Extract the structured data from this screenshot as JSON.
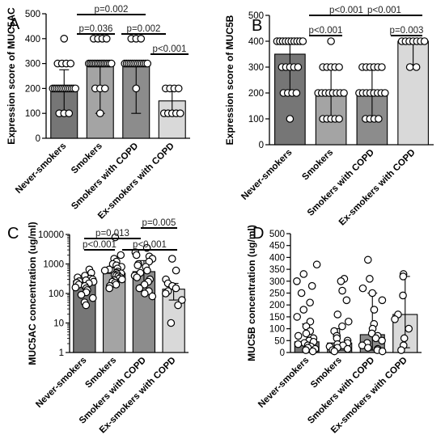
{
  "panels": [
    {
      "letter": "A",
      "type": "bar",
      "scale": "linear",
      "ylabel": "Expression score of MUC5AC",
      "ylim": [
        0,
        500
      ],
      "yticks": [
        0,
        100,
        200,
        300,
        400,
        500
      ],
      "categories": [
        "Never-smokers",
        "Smokers",
        "Smokers with COPD",
        "Ex-smokers with COPD"
      ],
      "values": [
        200,
        300,
        300,
        150
      ],
      "error_upper": [
        275,
        300,
        300,
        200
      ],
      "error_lower": [
        100,
        100,
        100,
        100
      ],
      "fills": [
        "#767676",
        "#a4a4a4",
        "#8c8c8c",
        "#d9d9d9"
      ],
      "points": [
        [
          400,
          300,
          300,
          300,
          300,
          200,
          200,
          200,
          200,
          200,
          200,
          200,
          200,
          200,
          200,
          200,
          200,
          200,
          100,
          100,
          100
        ],
        [
          400,
          400,
          400,
          400,
          300,
          300,
          300,
          300,
          300,
          300,
          300,
          300,
          300,
          300,
          300,
          300,
          300,
          300,
          200,
          200,
          200,
          100
        ],
        [
          400,
          400,
          400,
          300,
          300,
          300,
          300,
          300,
          300,
          300,
          300,
          300,
          300,
          300,
          300,
          300,
          200
        ],
        [
          200,
          200,
          200,
          200,
          100,
          100,
          100,
          100,
          100
        ]
      ],
      "brackets": [
        {
          "from": 0,
          "to": 2,
          "label": "p=0.002"
        },
        {
          "from": 0,
          "to": 1,
          "label": "p=0.036"
        },
        {
          "from": 1,
          "to": 2,
          "label": "p=0.002"
        },
        {
          "from": 2,
          "to": 3,
          "label": "p<0.001"
        }
      ]
    },
    {
      "letter": "B",
      "type": "bar",
      "scale": "linear",
      "ylabel": "Expression score of MUC5B",
      "ylim": [
        0,
        500
      ],
      "yticks": [
        0,
        100,
        200,
        300,
        400,
        500
      ],
      "categories": [
        "Never-smokers",
        "Smokers",
        "Smokers with COPD",
        "Ex-smokers with COPD"
      ],
      "values": [
        350,
        200,
        200,
        400
      ],
      "error_upper": [
        400,
        300,
        300,
        400
      ],
      "error_lower": [
        200,
        100,
        100,
        300
      ],
      "fills": [
        "#767676",
        "#a4a4a4",
        "#8c8c8c",
        "#d9d9d9"
      ],
      "points": [
        [
          400,
          400,
          400,
          400,
          400,
          400,
          400,
          400,
          400,
          400,
          300,
          300,
          300,
          300,
          300,
          200,
          200,
          200,
          200,
          100
        ],
        [
          400,
          300,
          300,
          300,
          300,
          300,
          200,
          200,
          200,
          200,
          200,
          200,
          200,
          200,
          100,
          100,
          100,
          100,
          100
        ],
        [
          300,
          300,
          300,
          300,
          300,
          300,
          200,
          200,
          200,
          200,
          200,
          200,
          200,
          200,
          100,
          100,
          100,
          100
        ],
        [
          400,
          400,
          400,
          400,
          400,
          400,
          400,
          300,
          300
        ]
      ],
      "brackets": [
        {
          "from": 0,
          "to": 2,
          "label": "p<0.001"
        },
        {
          "from": 1,
          "to": 3,
          "label": "p<0.001"
        },
        {
          "from": 0,
          "to": 1,
          "label": "p<0.001"
        },
        {
          "from": 2,
          "to": 3,
          "label": "p=0.003"
        }
      ]
    },
    {
      "letter": "C",
      "type": "bar",
      "scale": "log",
      "ylabel": "MUC5AC concentration (ug/ml)",
      "ylim": [
        1,
        10000
      ],
      "yticks": [
        1,
        10,
        100,
        1000,
        10000
      ],
      "categories": [
        "Never-smokers",
        "Smokers",
        "Smokers with COPD",
        "Ex-smokers with COPD"
      ],
      "values": [
        270,
        480,
        550,
        140
      ],
      "error_upper": [
        400,
        750,
        1300,
        220
      ],
      "error_lower": [
        170,
        300,
        200,
        60
      ],
      "fills": [
        "#767676",
        "#a4a4a4",
        "#8c8c8c",
        "#d9d9d9"
      ],
      "points": [
        [
          650,
          500,
          400,
          350,
          320,
          300,
          280,
          260,
          250,
          230,
          220,
          200,
          180,
          160,
          150,
          130,
          110,
          90,
          70,
          50,
          40
        ],
        [
          8000,
          2000,
          1500,
          1200,
          1000,
          900,
          800,
          700,
          650,
          600,
          550,
          500,
          480,
          450,
          420,
          400,
          380,
          350,
          320,
          300,
          280,
          250,
          230,
          200,
          180,
          150
        ],
        [
          3500,
          2500,
          2000,
          1800,
          1500,
          1200,
          1000,
          900,
          800,
          600,
          500,
          400,
          350,
          300,
          250,
          200,
          150,
          120,
          100,
          80
        ],
        [
          1500,
          600,
          300,
          220,
          180,
          150,
          120,
          100,
          60,
          40,
          10
        ]
      ],
      "brackets": [
        {
          "from": 2,
          "to": 3,
          "label": "p=0.005"
        },
        {
          "from": 0,
          "to": 2,
          "label": "p=0.013"
        },
        {
          "from": 0,
          "to": 1,
          "label": "p<0.001"
        },
        {
          "from": 1,
          "to": 3,
          "label": "p<0.001"
        }
      ]
    },
    {
      "letter": "D",
      "type": "bar",
      "scale": "linear",
      "ylabel": "MUC5B concentration (ug/ml)",
      "ylim": [
        0,
        500
      ],
      "yticks": [
        0,
        50,
        100,
        150,
        200,
        250,
        300,
        350,
        400,
        450,
        500
      ],
      "categories": [
        "Never-smokers",
        "Smokers",
        "Smokers with COPD",
        "Ex-smokers with COPD"
      ],
      "values": [
        45,
        40,
        75,
        160
      ],
      "error_upper": [
        120,
        100,
        250,
        320
      ],
      "error_lower": [
        10,
        10,
        10,
        20
      ],
      "fills": [
        "#767676",
        "#a4a4a4",
        "#8c8c8c",
        "#d9d9d9"
      ],
      "points": [
        [
          370,
          330,
          300,
          280,
          250,
          210,
          180,
          150,
          130,
          110,
          90,
          80,
          70,
          60,
          50,
          45,
          40,
          35,
          30,
          25,
          20,
          15,
          10,
          5
        ],
        [
          310,
          300,
          260,
          220,
          160,
          130,
          110,
          90,
          70,
          60,
          50,
          40,
          35,
          30,
          25,
          20,
          15,
          10,
          5
        ],
        [
          390,
          310,
          270,
          250,
          220,
          180,
          120,
          100,
          80,
          70,
          60,
          50,
          40,
          30,
          20,
          15,
          10,
          5
        ],
        [
          330,
          320,
          240,
          160,
          140,
          100,
          60,
          30,
          10
        ]
      ],
      "brackets": []
    }
  ]
}
